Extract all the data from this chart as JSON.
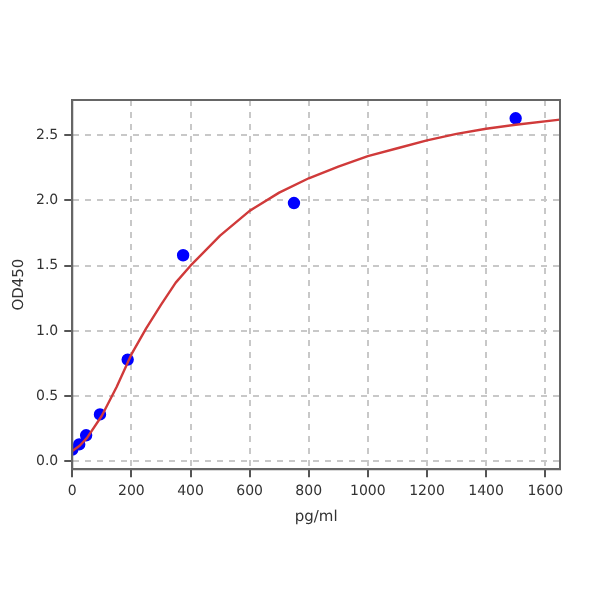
{
  "chart_data": {
    "type": "scatter",
    "xlabel": "pg/ml",
    "ylabel": "OD450",
    "xlim": [
      0,
      1650
    ],
    "ylim": [
      -0.06,
      2.77
    ],
    "xticks": [
      0,
      200,
      400,
      600,
      800,
      1000,
      1200,
      1400,
      1600
    ],
    "yticks": [
      {
        "value": 0,
        "label": "0.0"
      },
      {
        "value": 0.5,
        "label": "0.5"
      },
      {
        "value": 1,
        "label": "1.0"
      },
      {
        "value": 1.5,
        "label": "1.5"
      },
      {
        "value": 2,
        "label": "2.0"
      },
      {
        "value": 2.5,
        "label": "2.5"
      }
    ],
    "grid": true,
    "legend": false,
    "series": [
      {
        "type": "line",
        "color": "#d03a3a",
        "marker": "none",
        "line_style": "solid",
        "x": [
          0,
          25,
          50,
          100,
          150,
          200,
          250,
          300,
          350,
          400,
          500,
          600,
          700,
          800,
          900,
          1000,
          1100,
          1200,
          1300,
          1400,
          1500,
          1650
        ],
        "values": [
          0.08,
          0.12,
          0.18,
          0.35,
          0.57,
          0.82,
          1.02,
          1.2,
          1.37,
          1.5,
          1.73,
          1.92,
          2.06,
          2.17,
          2.26,
          2.34,
          2.4,
          2.46,
          2.51,
          2.55,
          2.58,
          2.62
        ]
      },
      {
        "color": "#0000ff",
        "marker": "circle",
        "x": [
          0,
          23.44,
          46.88,
          93.75,
          187.5,
          375,
          750,
          1500
        ],
        "values": [
          0.09,
          0.13,
          0.2,
          0.36,
          0.78,
          1.58,
          1.98,
          2.63
        ]
      }
    ]
  }
}
